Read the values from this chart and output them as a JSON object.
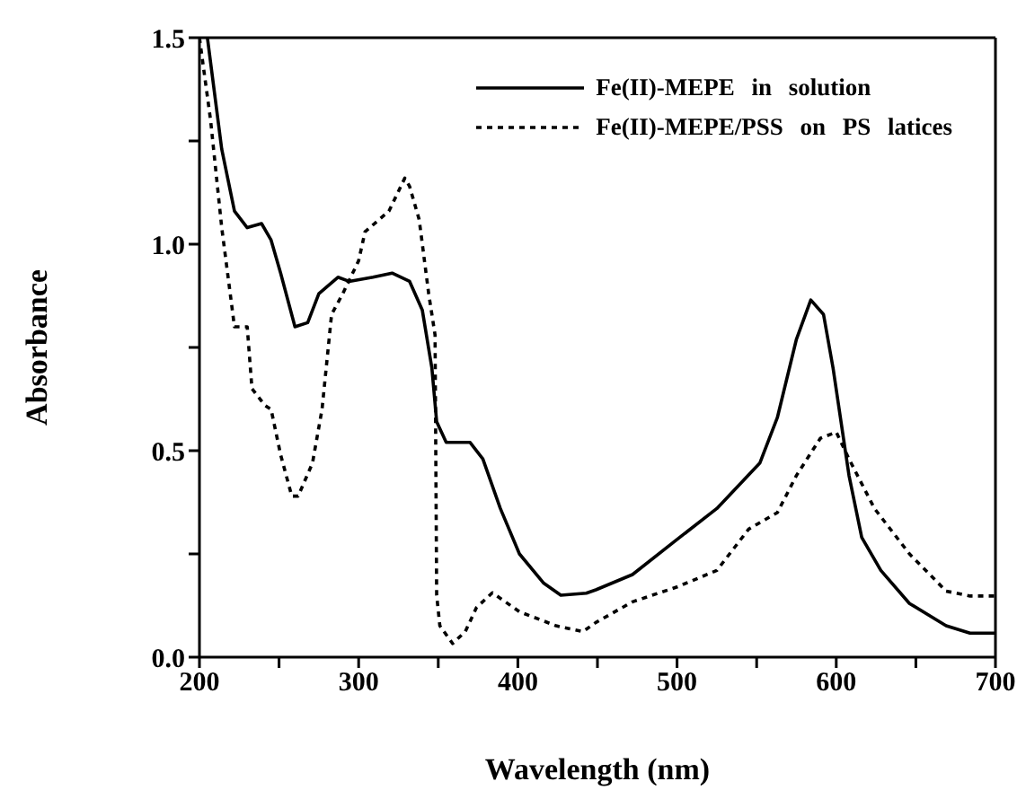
{
  "chart_data": {
    "type": "line",
    "xlabel": "Wavelength (nm)",
    "ylabel": "Absorbance",
    "xlim": [
      200,
      700
    ],
    "ylim": [
      0,
      1.5
    ],
    "xticks": [
      200,
      {
        "value": 250,
        "label": null
      },
      300,
      {
        "value": 350,
        "label": null
      },
      400,
      {
        "value": 450,
        "label": null
      },
      500,
      {
        "value": 550,
        "label": null
      },
      600,
      {
        "value": 650,
        "label": null
      },
      700
    ],
    "yticks": [
      {
        "value": 0,
        "label": "0.0"
      },
      {
        "value": 0.25,
        "label": null
      },
      {
        "value": 0.5,
        "label": "0.5"
      },
      {
        "value": 0.75,
        "label": null
      },
      {
        "value": 1,
        "label": "1.0"
      },
      {
        "value": 1.25,
        "label": null
      },
      {
        "value": 1.5,
        "label": "1.5"
      }
    ],
    "legend": "top right",
    "marker": "none",
    "series": [
      {
        "name": "Fe(II)-MEPE in solution",
        "color": "#000000",
        "line_style": "solid",
        "x": [
          205,
          214,
          222,
          230,
          239,
          245,
          251,
          260,
          268,
          275,
          287,
          294,
          309,
          321,
          332,
          340,
          346,
          349,
          355,
          370,
          378,
          389,
          401,
          416,
          427,
          443,
          449,
          472,
          500,
          525,
          552,
          563,
          575,
          584,
          592,
          598,
          608,
          616,
          628,
          646,
          669,
          684,
          700
        ],
        "values": [
          1.5,
          1.23,
          1.08,
          1.04,
          1.05,
          1.01,
          0.93,
          0.8,
          0.81,
          0.88,
          0.92,
          0.91,
          0.92,
          0.93,
          0.91,
          0.84,
          0.7,
          0.57,
          0.52,
          0.52,
          0.48,
          0.36,
          0.25,
          0.18,
          0.15,
          0.155,
          0.163,
          0.2,
          0.285,
          0.36,
          0.47,
          0.58,
          0.77,
          0.865,
          0.83,
          0.7,
          0.44,
          0.29,
          0.21,
          0.13,
          0.076,
          0.058,
          0.058
        ]
      },
      {
        "name": "Fe(II)-MEPE/PSS on PS latices",
        "color": "#000000",
        "line_style": "dashed",
        "x": [
          200,
          207,
          214,
          222,
          230,
          233,
          241,
          245,
          251,
          258,
          262,
          271,
          277,
          283,
          290,
          300,
          304,
          313,
          319,
          329,
          332,
          338,
          344,
          348,
          349,
          351,
          359,
          367,
          374,
          384,
          401,
          424,
          441,
          449,
          472,
          500,
          525,
          545,
          563,
          575,
          590,
          600,
          608,
          624,
          646,
          669,
          684,
          700
        ],
        "values": [
          1.5,
          1.3,
          1.04,
          0.8,
          0.8,
          0.65,
          0.61,
          0.6,
          0.49,
          0.39,
          0.39,
          0.47,
          0.6,
          0.83,
          0.88,
          0.96,
          1.03,
          1.06,
          1.08,
          1.16,
          1.14,
          1.06,
          0.88,
          0.78,
          0.15,
          0.076,
          0.033,
          0.062,
          0.12,
          0.156,
          0.11,
          0.076,
          0.062,
          0.084,
          0.134,
          0.17,
          0.21,
          0.31,
          0.35,
          0.44,
          0.53,
          0.545,
          0.48,
          0.36,
          0.25,
          0.16,
          0.148,
          0.148
        ]
      }
    ]
  }
}
